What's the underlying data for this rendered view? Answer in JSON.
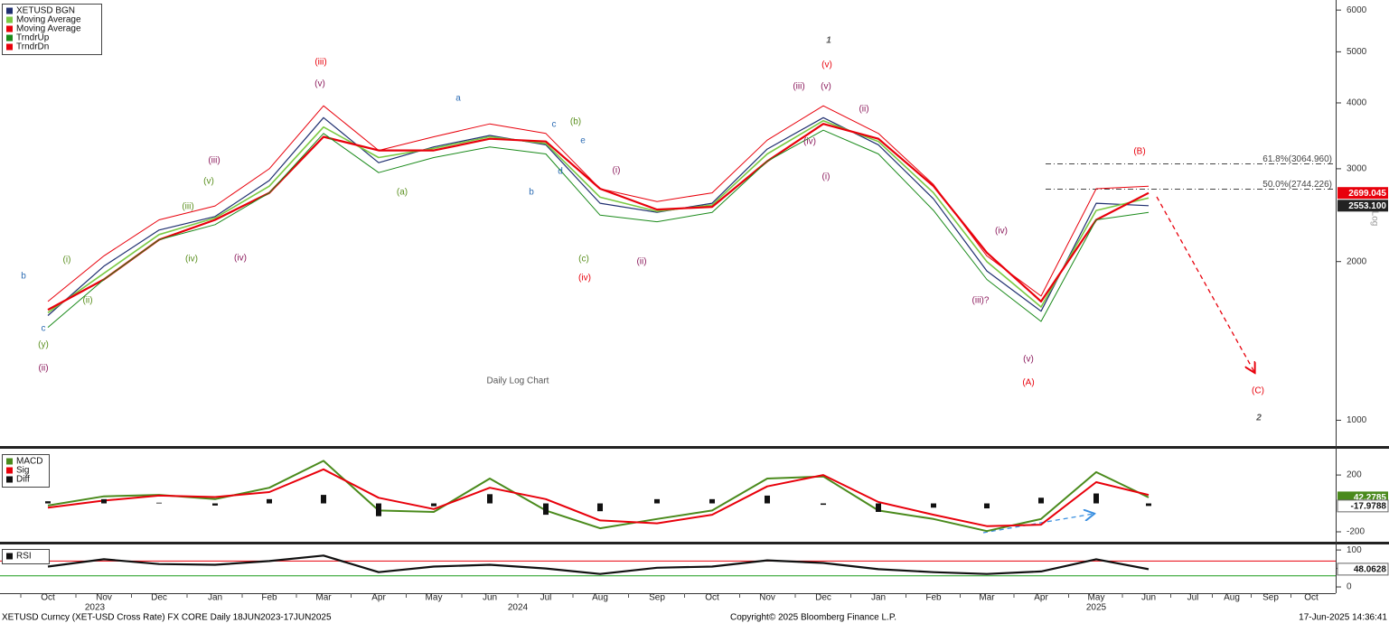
{
  "chart_data": [
    {
      "type": "line",
      "log_scale": true,
      "categories": [
        "Oct",
        "Nov",
        "Dec",
        "Jan",
        "Feb",
        "Mar",
        "Apr",
        "May",
        "Jun",
        "Jul",
        "Aug",
        "Sep",
        "Oct",
        "Nov",
        "Dec",
        "Jan",
        "Feb",
        "Mar",
        "Apr",
        "May",
        "Jun",
        "Jul",
        "Aug",
        "Sep",
        "Oct"
      ],
      "years": [
        "2023",
        "2024",
        "2025"
      ],
      "y_label": "Log",
      "ylim": [
        890,
        6270
      ],
      "yticks": [
        1000,
        2000,
        3000,
        4000,
        5000,
        6000
      ],
      "series": [
        {
          "name": "XETUSD BGN",
          "color": "#1f2f70",
          "values": [
            1580,
            1960,
            2295,
            2435,
            2850,
            3750,
            3080,
            3300,
            3470,
            3330,
            2580,
            2480,
            2580,
            3270,
            3750,
            3330,
            2630,
            1920,
            1610,
            2580,
            2553.1,
            null,
            null,
            null,
            null
          ]
        },
        {
          "name": "Moving Average",
          "color": "#7ac943",
          "values": [
            1600,
            1900,
            2250,
            2420,
            2780,
            3600,
            3150,
            3280,
            3450,
            3350,
            2650,
            2490,
            2560,
            3200,
            3700,
            3380,
            2700,
            2000,
            1640,
            2500,
            2640,
            null,
            null,
            null,
            null
          ]
        },
        {
          "name": "Moving Average",
          "color": "#e8000b",
          "values": [
            1620,
            1850,
            2200,
            2400,
            2700,
            3450,
            3250,
            3250,
            3420,
            3380,
            2750,
            2510,
            2540,
            3100,
            3650,
            3420,
            2780,
            2080,
            1680,
            2400,
            2699.045,
            null,
            null,
            null,
            null
          ]
        },
        {
          "name": "TrndrUp",
          "color": "#1a8a1a",
          "values": [
            1500,
            1850,
            2200,
            2350,
            2700,
            3500,
            2950,
            3150,
            3300,
            3200,
            2450,
            2380,
            2480,
            3100,
            3550,
            3200,
            2500,
            1850,
            1540,
            2400,
            2480,
            null,
            null,
            null,
            null
          ]
        },
        {
          "name": "TrndrDn",
          "color": "#e8000b",
          "values": [
            1680,
            2050,
            2400,
            2550,
            3000,
            3950,
            3250,
            3450,
            3650,
            3500,
            2750,
            2600,
            2700,
            3400,
            3950,
            3500,
            2800,
            2050,
            1720,
            2750,
            2780,
            null,
            null,
            null,
            null
          ]
        }
      ],
      "last_values": [
        2699.045,
        {
          "value": 2553.1,
          "label": "2553.100"
        }
      ],
      "last_value_colors": [
        "#e8000b",
        "#222222"
      ],
      "fib_levels": [
        {
          "value": 3064.96,
          "label": "61.8%(3064.960)"
        },
        {
          "value": 2744.226,
          "label": "50.0%(2744.226)"
        }
      ],
      "annotations": [
        {
          "text": "b",
          "color": "#2e6db4"
        },
        {
          "text": "c",
          "color": "#2e6db4"
        },
        {
          "text": "(y)",
          "color": "#5a8f1e"
        },
        {
          "text": "(ii)",
          "color": "#8b1a5c"
        },
        {
          "text": "(i)",
          "color": "#5a8f1e"
        },
        {
          "text": "(ii)",
          "color": "#5a8f1e"
        },
        {
          "text": "(iii)",
          "color": "#5a8f1e"
        },
        {
          "text": "(iv)",
          "color": "#5a8f1e"
        },
        {
          "text": "(v)",
          "color": "#5a8f1e"
        },
        {
          "text": "(iii)",
          "color": "#8b1a5c"
        },
        {
          "text": "(iv)",
          "color": "#8b1a5c"
        },
        {
          "text": "(iii)",
          "color": "#e8000b"
        },
        {
          "text": "(v)",
          "color": "#8b1a5c"
        },
        {
          "text": "a",
          "color": "#2e6db4"
        },
        {
          "text": "(a)",
          "color": "#5a8f1e"
        },
        {
          "text": "c",
          "color": "#2e6db4"
        },
        {
          "text": "(b)",
          "color": "#5a8f1e"
        },
        {
          "text": "e",
          "color": "#2e6db4"
        },
        {
          "text": "d",
          "color": "#2e6db4"
        },
        {
          "text": "b",
          "color": "#2e6db4"
        },
        {
          "text": "(c)",
          "color": "#5a8f1e"
        },
        {
          "text": "(iv)",
          "color": "#e8000b"
        },
        {
          "text": "(i)",
          "color": "#8b1a5c"
        },
        {
          "text": "(ii)",
          "color": "#8b1a5c"
        },
        {
          "text": "1",
          "color": "#555555"
        },
        {
          "text": "(v)",
          "color": "#e8000b"
        },
        {
          "text": "(iii)",
          "color": "#8b1a5c"
        },
        {
          "text": "(v)",
          "color": "#8b1a5c"
        },
        {
          "text": "(iv)",
          "color": "#8b1a5c"
        },
        {
          "text": "(i)",
          "color": "#8b1a5c"
        },
        {
          "text": "(ii)",
          "color": "#8b1a5c"
        },
        {
          "text": "(B)",
          "color": "#e8000b"
        },
        {
          "text": "(iv)",
          "color": "#8b1a5c"
        },
        {
          "text": "(iii)?",
          "color": "#8b1a5c"
        },
        {
          "text": "(v)",
          "color": "#8b1a5c"
        },
        {
          "text": "(A)",
          "color": "#e8000b"
        },
        {
          "text": "(C)",
          "color": "#e8000b"
        },
        {
          "text": "2",
          "color": "#555555"
        },
        {
          "text": "Daily Log Chart",
          "color": "#555555"
        }
      ]
    },
    {
      "type": "line",
      "ylim": [
        -270,
        385
      ],
      "yticks": [
        -200,
        200
      ],
      "series": [
        {
          "name": "MACD",
          "color": "#4a8a1c",
          "values": [
            -15,
            50,
            60,
            30,
            110,
            300,
            -50,
            -60,
            175,
            -50,
            -175,
            -110,
            -50,
            175,
            190,
            -50,
            -110,
            -195,
            -110,
            220,
            42.2785,
            null,
            null,
            null,
            null
          ]
        },
        {
          "name": "Sig",
          "color": "#e8000b",
          "values": [
            -30,
            20,
            55,
            45,
            80,
            240,
            40,
            -40,
            110,
            30,
            -120,
            -140,
            -80,
            120,
            200,
            10,
            -80,
            -160,
            -150,
            150,
            60,
            null,
            null,
            null,
            null
          ]
        },
        {
          "name": "Diff",
          "color": "#111111",
          "kind": "bar",
          "values": [
            15,
            30,
            5,
            -15,
            30,
            60,
            -90,
            -20,
            65,
            -80,
            -55,
            30,
            30,
            55,
            -10,
            -60,
            -30,
            -35,
            40,
            70,
            -17.9788,
            null,
            null,
            null,
            null
          ]
        }
      ],
      "last_values": [
        42.2785,
        -17.9788
      ],
      "last_value_colors": [
        "#4a8a1c",
        "#ffffff"
      ]
    },
    {
      "type": "line",
      "ylim": [
        -17,
        115
      ],
      "yticks": [
        0,
        50,
        100
      ],
      "levels": [
        70,
        30
      ],
      "level_colors": [
        "#e8000b",
        "#1a9a1a"
      ],
      "series": [
        {
          "name": "RSI",
          "color": "#111111",
          "values": [
            55,
            75,
            62,
            60,
            70,
            85,
            40,
            55,
            60,
            50,
            35,
            52,
            55,
            72,
            65,
            48,
            40,
            35,
            42,
            75,
            48.0628,
            null,
            null,
            null,
            null
          ]
        }
      ],
      "last_values": [
        48.0628
      ],
      "last_value_colors": [
        "#ffffff"
      ]
    }
  ],
  "footer": {
    "left": "XETUSD Curncy (XET-USD Cross Rate) FX CORE  Daily 18JUN2023-17JUN2025",
    "center": "Copyright© 2025 Bloomberg Finance L.P.",
    "right": "17-Jun-2025 14:36:41"
  }
}
